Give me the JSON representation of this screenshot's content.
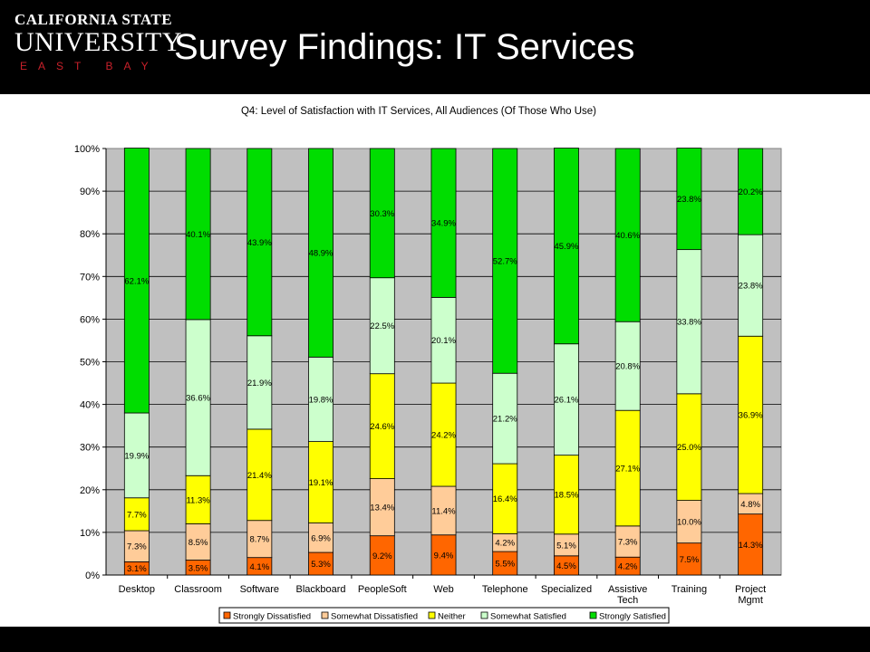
{
  "header": {
    "logo": {
      "line1": "CALIFORNIA STATE",
      "line2": "UNIVERSITY",
      "line3": "EAST BAY"
    },
    "title": "Survey Findings: IT Services"
  },
  "colors": {
    "background": "#000000",
    "panel": "#ffffff",
    "plot_area": "#c0c0c0",
    "logo_accent": "#c8202a"
  },
  "chart_data": {
    "type": "bar",
    "stacked": true,
    "percent_stacked": true,
    "title": "Q4: Level of Satisfaction with IT Services, All Audiences (Of Those Who Use)",
    "categories": [
      "Desktop",
      "Classroom",
      "Software",
      "Blackboard",
      "PeopleSoft",
      "Web",
      "Telephone",
      "Specialized",
      "Assistive Tech",
      "Training",
      "Project Mgmt"
    ],
    "category_lines": [
      [
        "Desktop"
      ],
      [
        "Classroom"
      ],
      [
        "Software"
      ],
      [
        "Blackboard"
      ],
      [
        "PeopleSoft"
      ],
      [
        "Web"
      ],
      [
        "Telephone"
      ],
      [
        "Specialized"
      ],
      [
        "Assistive",
        "Tech"
      ],
      [
        "Training"
      ],
      [
        "Project",
        "Mgmt"
      ]
    ],
    "series": [
      {
        "name": "Strongly Dissatisfied",
        "color": "#ff6600",
        "values": [
          3.1,
          3.5,
          4.1,
          5.3,
          9.2,
          9.4,
          5.5,
          4.5,
          4.2,
          7.5,
          14.3
        ]
      },
      {
        "name": "Somewhat Dissatisfied",
        "color": "#ffcc99",
        "values": [
          7.3,
          8.5,
          8.7,
          6.9,
          13.4,
          11.4,
          4.2,
          5.1,
          7.3,
          10.0,
          4.8
        ]
      },
      {
        "name": "Neither",
        "color": "#ffff00",
        "values": [
          7.7,
          11.3,
          21.4,
          19.1,
          24.6,
          24.2,
          16.4,
          18.5,
          27.1,
          25.0,
          36.9
        ]
      },
      {
        "name": "Somewhat Satisfied",
        "color": "#ccffcc",
        "values": [
          19.9,
          36.6,
          21.9,
          19.8,
          22.5,
          20.1,
          21.2,
          26.1,
          20.8,
          33.8,
          23.8
        ]
      },
      {
        "name": "Strongly Satisfied",
        "color": "#00dd00",
        "values": [
          62.1,
          40.1,
          43.9,
          48.9,
          30.3,
          34.9,
          52.7,
          45.9,
          40.6,
          23.8,
          20.2
        ]
      }
    ],
    "y_ticks": [
      "0%",
      "10%",
      "20%",
      "30%",
      "40%",
      "50%",
      "60%",
      "70%",
      "80%",
      "90%",
      "100%"
    ],
    "ylim": [
      0,
      100
    ],
    "grid": true,
    "legend_position": "bottom"
  }
}
